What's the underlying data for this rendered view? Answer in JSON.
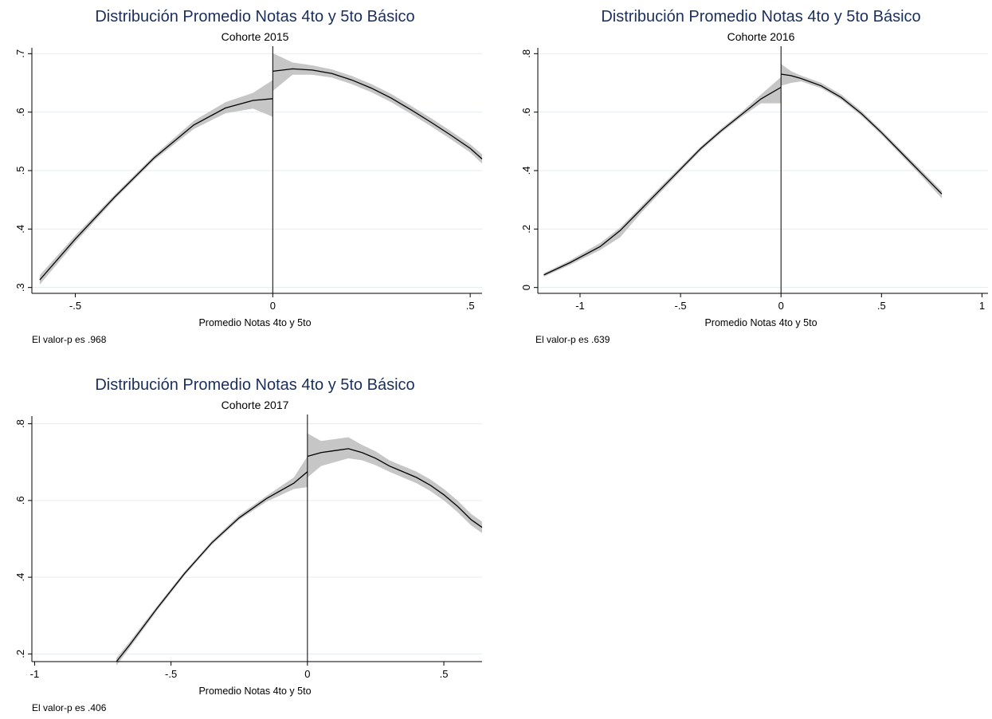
{
  "chart_data": [
    {
      "type": "line",
      "title": "Distribución Promedio Notas 4to y 5to Básico",
      "subtitle": "Cohorte 2015",
      "xlabel": "Promedio Notas 4to y 5to",
      "ylabel": "",
      "note": "El valor-p es .968",
      "xlim": [
        -0.61,
        0.53
      ],
      "ylim": [
        0.29,
        0.71
      ],
      "xticks": [
        -0.5,
        0,
        0.5
      ],
      "xtick_labels": [
        "-.5",
        "0",
        ".5"
      ],
      "yticks": [
        0.3,
        0.4,
        0.5,
        0.6,
        0.7
      ],
      "ytick_labels": [
        ".3",
        ".4",
        ".5",
        ".6",
        ".7"
      ],
      "cutoff": 0,
      "grid": true,
      "series": [
        {
          "x": [
            -0.59,
            -0.5,
            -0.4,
            -0.3,
            -0.2,
            -0.12,
            -0.05,
            0.0
          ],
          "y": [
            0.313,
            0.383,
            0.455,
            0.522,
            0.578,
            0.607,
            0.62,
            0.623
          ],
          "lower": [
            0.305,
            0.377,
            0.451,
            0.518,
            0.571,
            0.598,
            0.606,
            0.592
          ],
          "upper": [
            0.321,
            0.389,
            0.459,
            0.526,
            0.585,
            0.617,
            0.633,
            0.655
          ]
        },
        {
          "x": [
            0.0,
            0.05,
            0.1,
            0.15,
            0.2,
            0.25,
            0.3,
            0.35,
            0.4,
            0.45,
            0.5,
            0.53
          ],
          "y": [
            0.67,
            0.674,
            0.672,
            0.666,
            0.655,
            0.641,
            0.624,
            0.604,
            0.583,
            0.561,
            0.538,
            0.52
          ],
          "lower": [
            0.636,
            0.664,
            0.664,
            0.659,
            0.648,
            0.634,
            0.617,
            0.597,
            0.576,
            0.554,
            0.531,
            0.512
          ],
          "upper": [
            0.701,
            0.685,
            0.68,
            0.673,
            0.662,
            0.648,
            0.631,
            0.611,
            0.59,
            0.568,
            0.545,
            0.528
          ]
        }
      ]
    },
    {
      "type": "line",
      "title": "Distribución Promedio Notas 4to y 5to Básico",
      "subtitle": "Cohorte 2016",
      "xlabel": "Promedio Notas 4to y 5to",
      "ylabel": "",
      "note": "El valor-p es .639",
      "xlim": [
        -1.21,
        1.03
      ],
      "ylim": [
        -0.02,
        0.82
      ],
      "xticks": [
        -1,
        -0.5,
        0,
        0.5,
        1
      ],
      "xtick_labels": [
        "-1",
        "-.5",
        "0",
        ".5",
        "1"
      ],
      "yticks": [
        0,
        0.2,
        0.4,
        0.6,
        0.8
      ],
      "ytick_labels": [
        "0",
        ".2",
        ".4",
        ".6",
        ".8"
      ],
      "cutoff": 0,
      "grid": true,
      "series": [
        {
          "x": [
            -1.18,
            -1.05,
            -0.9,
            -0.8,
            -0.7,
            -0.6,
            -0.5,
            -0.4,
            -0.3,
            -0.2,
            -0.1,
            0.0
          ],
          "y": [
            0.043,
            0.085,
            0.14,
            0.195,
            0.265,
            0.335,
            0.405,
            0.475,
            0.535,
            0.59,
            0.645,
            0.685
          ],
          "lower": [
            0.037,
            0.077,
            0.128,
            0.172,
            0.252,
            0.325,
            0.397,
            0.468,
            0.528,
            0.582,
            0.63,
            0.63
          ],
          "upper": [
            0.049,
            0.093,
            0.152,
            0.205,
            0.275,
            0.345,
            0.413,
            0.482,
            0.542,
            0.598,
            0.66,
            0.72
          ]
        },
        {
          "x": [
            0.0,
            0.05,
            0.1,
            0.2,
            0.3,
            0.4,
            0.5,
            0.6,
            0.7,
            0.8
          ],
          "y": [
            0.73,
            0.725,
            0.715,
            0.69,
            0.65,
            0.595,
            0.53,
            0.46,
            0.39,
            0.32
          ],
          "lower": [
            0.69,
            0.7,
            0.705,
            0.682,
            0.642,
            0.587,
            0.522,
            0.451,
            0.38,
            0.305
          ],
          "upper": [
            0.765,
            0.74,
            0.725,
            0.7,
            0.66,
            0.604,
            0.538,
            0.469,
            0.4,
            0.33
          ]
        }
      ]
    },
    {
      "type": "line",
      "title": "Distribución Promedio Notas 4to y 5to Básico",
      "subtitle": "Cohorte 2017",
      "xlabel": "Promedio Notas 4to y 5to",
      "ylabel": "",
      "note": "El valor-p es .406",
      "xlim": [
        -1.01,
        0.64
      ],
      "ylim": [
        0.18,
        0.82
      ],
      "xticks": [
        -1,
        -0.5,
        0,
        0.5
      ],
      "xtick_labels": [
        "-1",
        "-.5",
        "0",
        ".5"
      ],
      "yticks": [
        0.2,
        0.4,
        0.6,
        0.8
      ],
      "ytick_labels": [
        ".2",
        ".4",
        ".6",
        ".8"
      ],
      "cutoff": 0,
      "grid": true,
      "series": [
        {
          "x": [
            -0.7,
            -0.65,
            -0.55,
            -0.45,
            -0.35,
            -0.25,
            -0.15,
            -0.05,
            0.0
          ],
          "y": [
            0.18,
            0.225,
            0.32,
            0.41,
            0.49,
            0.555,
            0.605,
            0.645,
            0.675
          ],
          "lower": [
            0.17,
            0.217,
            0.314,
            0.405,
            0.485,
            0.55,
            0.597,
            0.63,
            0.635
          ],
          "upper": [
            0.19,
            0.233,
            0.326,
            0.415,
            0.495,
            0.562,
            0.612,
            0.66,
            0.715
          ]
        },
        {
          "x": [
            0.0,
            0.05,
            0.1,
            0.15,
            0.2,
            0.25,
            0.3,
            0.35,
            0.4,
            0.45,
            0.5,
            0.55,
            0.6,
            0.64
          ],
          "y": [
            0.715,
            0.725,
            0.73,
            0.735,
            0.725,
            0.71,
            0.69,
            0.675,
            0.66,
            0.64,
            0.615,
            0.585,
            0.55,
            0.53
          ],
          "lower": [
            0.66,
            0.69,
            0.7,
            0.71,
            0.705,
            0.692,
            0.675,
            0.66,
            0.645,
            0.625,
            0.6,
            0.57,
            0.535,
            0.515
          ],
          "upper": [
            0.775,
            0.755,
            0.76,
            0.765,
            0.745,
            0.728,
            0.705,
            0.69,
            0.675,
            0.655,
            0.63,
            0.6,
            0.565,
            0.545
          ]
        }
      ]
    }
  ]
}
